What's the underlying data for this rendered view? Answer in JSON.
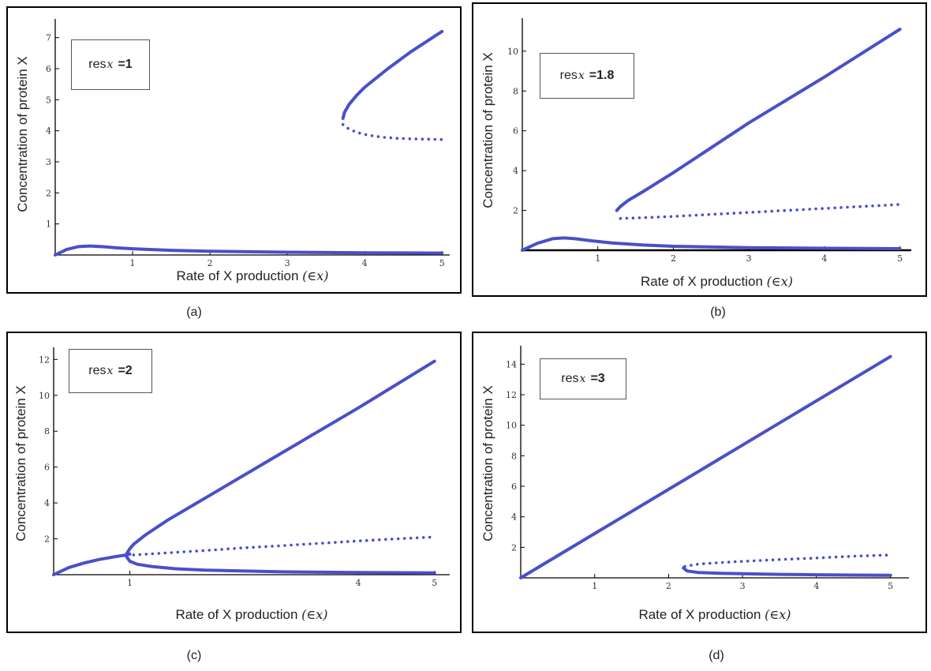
{
  "colors": {
    "curve": "#4a4fc9",
    "axis": "#000000",
    "text": "#222222"
  },
  "chart_data": [
    {
      "type": "scatter",
      "panel_caption": "(a)",
      "legend": {
        "prefix": "res",
        "sub": "x",
        "value": "=1"
      },
      "xlabel": "Rate of X production",
      "xlabel_symbol": "(∈x)",
      "ylabel": "Concentration of protein X",
      "xlim": [
        0,
        5.1
      ],
      "ylim": [
        0,
        7.5
      ],
      "xticks": [
        1,
        2,
        3,
        4,
        5
      ],
      "yticks": [
        1,
        2,
        3,
        4,
        5,
        6,
        7
      ],
      "series": [
        {
          "style": "solid",
          "points": [
            [
              0,
              0
            ],
            [
              0.15,
              0.18
            ],
            [
              0.3,
              0.27
            ],
            [
              0.45,
              0.29
            ],
            [
              0.6,
              0.27
            ],
            [
              0.8,
              0.23
            ],
            [
              1.0,
              0.2
            ],
            [
              1.5,
              0.15
            ],
            [
              2,
              0.12
            ],
            [
              3,
              0.09
            ],
            [
              4,
              0.07
            ],
            [
              5,
              0.06
            ]
          ]
        },
        {
          "style": "solid",
          "points": [
            [
              3.72,
              4.4
            ],
            [
              3.74,
              4.6
            ],
            [
              3.8,
              4.85
            ],
            [
              3.9,
              5.15
            ],
            [
              4.0,
              5.4
            ],
            [
              4.3,
              6.0
            ],
            [
              4.6,
              6.55
            ],
            [
              5.0,
              7.2
            ]
          ]
        },
        {
          "style": "dotted",
          "points": [
            [
              3.72,
              4.2
            ],
            [
              3.8,
              4.05
            ],
            [
              3.9,
              3.95
            ],
            [
              4.0,
              3.88
            ],
            [
              4.2,
              3.8
            ],
            [
              4.4,
              3.76
            ],
            [
              4.6,
              3.74
            ],
            [
              4.8,
              3.73
            ],
            [
              5.0,
              3.72
            ]
          ]
        }
      ]
    },
    {
      "type": "scatter",
      "panel_caption": "(b)",
      "legend": {
        "prefix": "res",
        "sub": "x",
        "value": "=1.8"
      },
      "xlabel": "Rate of X production",
      "xlabel_symbol": "(∈x)",
      "ylabel": "Concentration of protein X",
      "xlim": [
        0,
        5.15
      ],
      "ylim": [
        0,
        11.5
      ],
      "xticks": [
        1,
        2,
        3,
        4,
        5
      ],
      "yticks": [
        2,
        4,
        6,
        8,
        10
      ],
      "series": [
        {
          "style": "solid",
          "points": [
            [
              0,
              0
            ],
            [
              0.2,
              0.35
            ],
            [
              0.4,
              0.58
            ],
            [
              0.55,
              0.62
            ],
            [
              0.7,
              0.58
            ],
            [
              0.9,
              0.48
            ],
            [
              1.2,
              0.36
            ],
            [
              1.6,
              0.26
            ],
            [
              2,
              0.2
            ],
            [
              3,
              0.13
            ],
            [
              4,
              0.1
            ],
            [
              5,
              0.08
            ]
          ]
        },
        {
          "style": "solid",
          "points": [
            [
              1.25,
              2.0
            ],
            [
              1.3,
              2.2
            ],
            [
              1.4,
              2.5
            ],
            [
              1.6,
              2.95
            ],
            [
              2.0,
              3.9
            ],
            [
              3.0,
              6.4
            ],
            [
              4.0,
              8.7
            ],
            [
              5.0,
              11.1
            ]
          ]
        },
        {
          "style": "dotted",
          "points": [
            [
              1.3,
              1.6
            ],
            [
              1.5,
              1.62
            ],
            [
              2,
              1.7
            ],
            [
              2.5,
              1.8
            ],
            [
              3,
              1.9
            ],
            [
              3.5,
              2.0
            ],
            [
              4,
              2.1
            ],
            [
              4.5,
              2.2
            ],
            [
              5,
              2.3
            ]
          ]
        }
      ]
    },
    {
      "type": "scatter",
      "panel_caption": "(c)",
      "legend": {
        "prefix": "res",
        "sub": "x",
        "value": "=2"
      },
      "xlabel": "Rate of X production",
      "xlabel_symbol": "(∈x)",
      "ylabel": "Concentration of protein X",
      "xlim": [
        0,
        5.2
      ],
      "ylim": [
        0,
        12.5
      ],
      "xticks": [
        1,
        4,
        5
      ],
      "yticks": [
        2,
        4,
        6,
        8,
        10,
        12
      ],
      "series": [
        {
          "style": "solid",
          "points": [
            [
              0,
              0
            ],
            [
              0.2,
              0.4
            ],
            [
              0.4,
              0.65
            ],
            [
              0.6,
              0.85
            ],
            [
              0.8,
              1.0
            ],
            [
              0.95,
              1.1
            ],
            [
              1.0,
              1.15
            ]
          ]
        },
        {
          "style": "solid",
          "points": [
            [
              0.95,
              1.1
            ],
            [
              1.0,
              1.45
            ],
            [
              1.05,
              1.7
            ],
            [
              1.2,
              2.2
            ],
            [
              1.5,
              3.05
            ],
            [
              2,
              4.3
            ],
            [
              3,
              6.8
            ],
            [
              4,
              9.3
            ],
            [
              5,
              11.9
            ]
          ]
        },
        {
          "style": "solid",
          "points": [
            [
              0.95,
              1.05
            ],
            [
              1.0,
              0.75
            ],
            [
              1.1,
              0.58
            ],
            [
              1.3,
              0.45
            ],
            [
              1.6,
              0.33
            ],
            [
              2,
              0.25
            ],
            [
              3,
              0.16
            ],
            [
              4,
              0.12
            ],
            [
              5,
              0.1
            ]
          ]
        },
        {
          "style": "dotted",
          "points": [
            [
              1.05,
              1.1
            ],
            [
              1.5,
              1.22
            ],
            [
              2,
              1.35
            ],
            [
              2.5,
              1.5
            ],
            [
              3,
              1.62
            ],
            [
              3.5,
              1.75
            ],
            [
              4,
              1.88
            ],
            [
              4.5,
              2.0
            ],
            [
              5,
              2.1
            ]
          ]
        }
      ]
    },
    {
      "type": "scatter",
      "panel_caption": "(d)",
      "legend": {
        "prefix": "res",
        "sub": "x",
        "value": "=3"
      },
      "xlabel": "Rate of X production",
      "xlabel_symbol": "(∈x)",
      "ylabel": "Concentration of protein X",
      "xlim": [
        0,
        5.25
      ],
      "ylim": [
        0,
        15
      ],
      "xticks": [
        1,
        2,
        3,
        4,
        5
      ],
      "yticks": [
        2,
        4,
        6,
        8,
        10,
        12,
        14
      ],
      "series": [
        {
          "style": "solid",
          "points": [
            [
              0,
              0
            ],
            [
              1,
              2.9
            ],
            [
              2,
              5.8
            ],
            [
              3,
              8.7
            ],
            [
              4,
              11.6
            ],
            [
              5,
              14.5
            ]
          ]
        },
        {
          "style": "solid",
          "points": [
            [
              2.2,
              0.65
            ],
            [
              2.25,
              0.45
            ],
            [
              2.4,
              0.35
            ],
            [
              2.7,
              0.3
            ],
            [
              3,
              0.27
            ],
            [
              3.5,
              0.23
            ],
            [
              4,
              0.2
            ],
            [
              4.5,
              0.18
            ],
            [
              5,
              0.17
            ]
          ]
        },
        {
          "style": "dotted",
          "points": [
            [
              2.22,
              0.75
            ],
            [
              2.4,
              0.9
            ],
            [
              2.7,
              1.0
            ],
            [
              3,
              1.08
            ],
            [
              3.5,
              1.2
            ],
            [
              4,
              1.3
            ],
            [
              4.5,
              1.42
            ],
            [
              5,
              1.5
            ]
          ]
        }
      ]
    }
  ]
}
